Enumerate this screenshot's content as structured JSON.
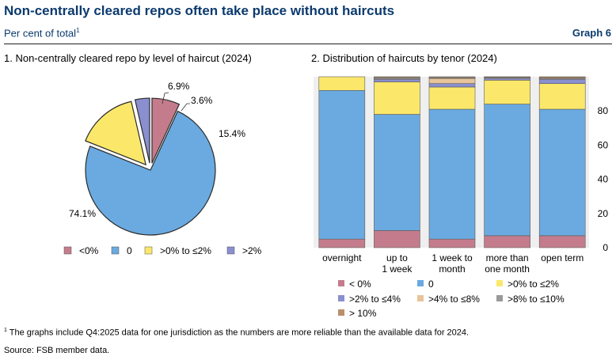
{
  "header": {
    "title": "Non-centrally cleared repos often take place without haircuts",
    "subtitle": "Per cent of total",
    "subtitle_note": "1",
    "graph_label": "Graph 6"
  },
  "footer": {
    "footnote_mark": "1",
    "footnote": "The graphs include Q4:2025 data for one jurisdiction as the numbers are more reliable than the available data for 2024.",
    "source": "Source: FSB member data."
  },
  "chart_data": [
    {
      "type": "pie",
      "title": "1. Non-centrally cleared repo by level of haircut (2024)",
      "slices": [
        {
          "name": "<0%",
          "value": 6.9,
          "label": "6.9%",
          "color": "#c47c8c"
        },
        {
          "name": "0",
          "value": 74.1,
          "label": "74.1%",
          "color": "#6aaae0"
        },
        {
          "name": ">0% to ≤2%",
          "value": 15.4,
          "label": "15.4%",
          "color": "#fbe86a"
        },
        {
          "name": ">2%",
          "value": 3.6,
          "label": "3.6%",
          "color": "#8a8fd0"
        }
      ],
      "legend_position": "bottom"
    },
    {
      "type": "bar",
      "stacked": true,
      "title": "2. Distribution of haircuts by tenor (2024)",
      "categories": [
        [
          "overnight"
        ],
        [
          "up to",
          "1 week"
        ],
        [
          "1 week to",
          "month"
        ],
        [
          "more than",
          "one month"
        ],
        [
          "open term"
        ]
      ],
      "ylim": [
        0,
        100
      ],
      "yticks": [
        0,
        20,
        40,
        60,
        80
      ],
      "y_axis_side": "right",
      "grid": false,
      "legend_position": "bottom",
      "series": [
        {
          "name": "< 0%",
          "color": "#c47c8c",
          "values": [
            5,
            10,
            5,
            7,
            7
          ]
        },
        {
          "name": "0",
          "color": "#6aaae0",
          "values": [
            87,
            68,
            76,
            77,
            74
          ]
        },
        {
          "name": ">0% to ≤2%",
          "color": "#fbe86a",
          "values": [
            8,
            19,
            13,
            14,
            15
          ]
        },
        {
          "name": ">2% to ≤4%",
          "color": "#8a8fd0",
          "values": [
            0,
            1.5,
            2,
            1,
            2.5
          ]
        },
        {
          "name": ">4% to ≤8%",
          "color": "#e8c49a",
          "values": [
            0,
            0.5,
            3,
            0.5,
            0.5
          ]
        },
        {
          "name": ">8% to ≤10%",
          "color": "#9a9a9a",
          "values": [
            0,
            0.5,
            0.5,
            0.3,
            0.3
          ]
        },
        {
          "name": "> 10%",
          "color": "#b8906a",
          "values": [
            0,
            0.5,
            0.5,
            0.2,
            0.7
          ]
        }
      ]
    }
  ]
}
